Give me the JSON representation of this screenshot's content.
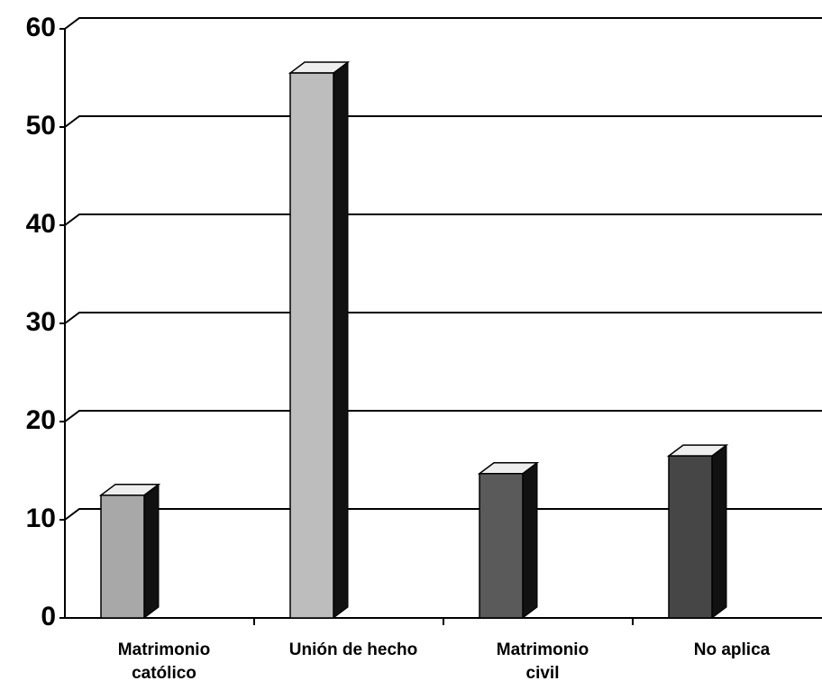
{
  "chart_data": {
    "type": "bar",
    "categories": [
      "Matrimonio\ncatólico",
      "Unión de hecho",
      "Matrimonio\ncivil",
      "No aplica"
    ],
    "values": [
      12.5,
      55.5,
      14.7,
      16.5
    ],
    "colors": [
      "#a8a8a8",
      "#bdbdbd",
      "#5a5a5a",
      "#464646"
    ],
    "ylim": [
      0,
      60
    ],
    "yticks": [
      0,
      10,
      20,
      30,
      40,
      50,
      60
    ],
    "grid": true
  }
}
